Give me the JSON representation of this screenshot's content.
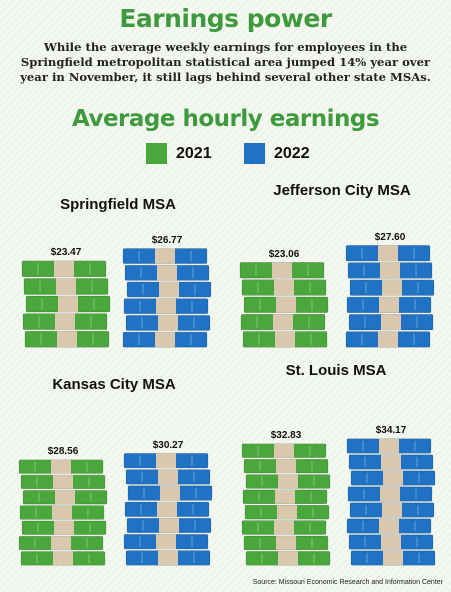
{
  "title": "Earnings power",
  "subtitle": "While the average weekly earnings for employees in the Springfield metropolitan statistical area jumped 14% year over year in November, it still lags behind several other state MSAs.",
  "source": "Source: Missouri Economic Research and Information Center",
  "colors": {
    "title": "#3f9a3e",
    "bill_2021": "#4aa73c",
    "bill_2022": "#1f72c4",
    "band": "#d9c8ae"
  },
  "chart_data": {
    "type": "bar",
    "title": "Average hourly earnings",
    "legend": [
      {
        "label": "2021",
        "color": "#4aa73c"
      },
      {
        "label": "2022",
        "color": "#1f72c4"
      }
    ],
    "legend_placement": "top-center",
    "unit": "$",
    "panels": [
      {
        "name": "Springfield MSA",
        "values": [
          23.47,
          26.77
        ],
        "labels": [
          "$23.47",
          "$26.77"
        ]
      },
      {
        "name": "Jefferson City MSA",
        "values": [
          23.06,
          27.6
        ],
        "labels": [
          "$23.06",
          "$27.60"
        ]
      },
      {
        "name": "Kansas City MSA",
        "values": [
          28.56,
          30.27
        ],
        "labels": [
          "$28.56",
          "$30.27"
        ]
      },
      {
        "name": "St. Louis MSA",
        "values": [
          32.83,
          34.17
        ],
        "labels": [
          "$32.83",
          "$34.17"
        ]
      }
    ]
  }
}
